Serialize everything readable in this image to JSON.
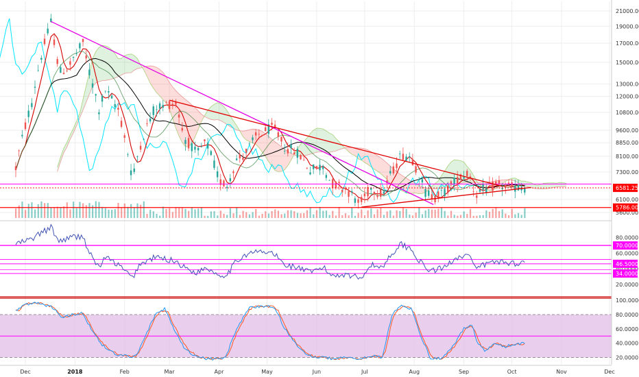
{
  "chart_data": [
    {
      "type": "candlestick",
      "pane": "price",
      "title": "",
      "y_ticks": [
        "21000.00",
        "19000.00",
        "17000.00",
        "15000.00",
        "13000.00",
        "12000.00",
        "10800.00",
        "9600.00",
        "8850.00",
        "8100.00",
        "7300.00",
        "6100.00",
        "5600.00"
      ],
      "y_tick_values": [
        21000,
        19000,
        17000,
        15000,
        13000,
        12000,
        10800,
        9600,
        8850,
        8100,
        7300,
        6100,
        5600
      ],
      "ylim": [
        5600,
        21000
      ],
      "scale": "log",
      "last_price": {
        "label": "6581.25",
        "value": 6581.25,
        "color": "#ff0000"
      },
      "support_level": {
        "label": "5786.00",
        "value": 5786,
        "color": "#ff0000"
      },
      "magenta_level": {
        "value": 6750,
        "color": "#ff00ff"
      },
      "series": [
        {
          "kind": "candles",
          "up_color": "#26a69a",
          "down_color": "#ef5350"
        },
        {
          "kind": "line",
          "color": "#00e5ff"
        },
        {
          "kind": "line",
          "color": "#000000"
        },
        {
          "kind": "cloud",
          "up_color": "#4caf50",
          "down_color": "#f44336"
        },
        {
          "kind": "volume",
          "up_color": "#26a69a",
          "down_color": "#ef5350"
        }
      ],
      "trendlines": [
        {
          "from": [
            "2017-12-17",
            19600
          ],
          "to": [
            "2018-08-13",
            5900
          ],
          "color": "#e600e6"
        },
        {
          "from": [
            "2018-03-01",
            11700
          ],
          "to": [
            "2018-09-25",
            6650
          ],
          "color": "#e00000"
        },
        {
          "from": [
            "2018-06-29",
            5800
          ],
          "to": [
            "2018-10-13",
            6600
          ],
          "color": "#e00000"
        }
      ],
      "price_waypoints": [
        [
          "2017-11-25",
          7500
        ],
        [
          "2017-12-05",
          11500
        ],
        [
          "2017-12-10",
          15000
        ],
        [
          "2017-12-17",
          19500
        ],
        [
          "2017-12-22",
          14000
        ],
        [
          "2017-12-28",
          14500
        ],
        [
          "2018-01-06",
          17000
        ],
        [
          "2018-01-10",
          14000
        ],
        [
          "2018-01-16",
          11000
        ],
        [
          "2018-01-20",
          12500
        ],
        [
          "2018-01-28",
          11000
        ],
        [
          "2018-02-06",
          6900
        ],
        [
          "2018-02-10",
          8500
        ],
        [
          "2018-02-20",
          11200
        ],
        [
          "2018-03-05",
          11500
        ],
        [
          "2018-03-10",
          9200
        ],
        [
          "2018-03-18",
          8200
        ],
        [
          "2018-03-24",
          8900
        ],
        [
          "2018-04-01",
          6900
        ],
        [
          "2018-04-06",
          6700
        ],
        [
          "2018-04-12",
          7900
        ],
        [
          "2018-04-17",
          8200
        ],
        [
          "2018-04-25",
          9300
        ],
        [
          "2018-05-05",
          9800
        ],
        [
          "2018-05-12",
          8600
        ],
        [
          "2018-05-20",
          8300
        ],
        [
          "2018-05-28",
          7400
        ],
        [
          "2018-06-05",
          7600
        ],
        [
          "2018-06-10",
          6800
        ],
        [
          "2018-06-20",
          6500
        ],
        [
          "2018-06-28",
          5900
        ],
        [
          "2018-07-05",
          6600
        ],
        [
          "2018-07-12",
          6300
        ],
        [
          "2018-07-18",
          7300
        ],
        [
          "2018-07-24",
          8200
        ],
        [
          "2018-07-30",
          8100
        ],
        [
          "2018-08-08",
          6400
        ],
        [
          "2018-08-14",
          6200
        ],
        [
          "2018-08-20",
          6400
        ],
        [
          "2018-08-27",
          6900
        ],
        [
          "2018-09-04",
          7300
        ],
        [
          "2018-09-08",
          6300
        ],
        [
          "2018-09-13",
          6500
        ],
        [
          "2018-09-22",
          6700
        ],
        [
          "2018-10-01",
          6600
        ],
        [
          "2018-10-09",
          6580
        ]
      ]
    },
    {
      "type": "line",
      "pane": "rsi",
      "ylim": [
        5,
        100
      ],
      "y_ticks": [
        "80.0000",
        "60.0000",
        "40.0000",
        "20.0000"
      ],
      "y_tick_values": [
        80,
        60,
        40,
        20
      ],
      "levels": [
        {
          "label": "70.0000",
          "value": 70,
          "color": "#ff00ff"
        },
        {
          "label": "46.5000",
          "value": 46.5,
          "color": "#ff00ff"
        },
        {
          "label": "34.0000",
          "value": 34,
          "color": "#ff00ff"
        }
      ],
      "line_color": "#3f51b5",
      "rsi_waypoints": [
        [
          "2017-11-25",
          72
        ],
        [
          "2017-12-05",
          78
        ],
        [
          "2017-12-10",
          85
        ],
        [
          "2017-12-17",
          93
        ],
        [
          "2017-12-22",
          75
        ],
        [
          "2017-12-28",
          80
        ],
        [
          "2018-01-06",
          82
        ],
        [
          "2018-01-10",
          60
        ],
        [
          "2018-01-16",
          42
        ],
        [
          "2018-01-20",
          55
        ],
        [
          "2018-01-28",
          45
        ],
        [
          "2018-02-06",
          28
        ],
        [
          "2018-02-10",
          45
        ],
        [
          "2018-02-20",
          55
        ],
        [
          "2018-03-05",
          50
        ],
        [
          "2018-03-10",
          42
        ],
        [
          "2018-03-18",
          35
        ],
        [
          "2018-03-24",
          42
        ],
        [
          "2018-04-01",
          32
        ],
        [
          "2018-04-06",
          33
        ],
        [
          "2018-04-12",
          50
        ],
        [
          "2018-04-17",
          58
        ],
        [
          "2018-04-25",
          62
        ],
        [
          "2018-05-05",
          60
        ],
        [
          "2018-05-12",
          45
        ],
        [
          "2018-05-20",
          42
        ],
        [
          "2018-05-28",
          35
        ],
        [
          "2018-06-05",
          42
        ],
        [
          "2018-06-10",
          32
        ],
        [
          "2018-06-20",
          33
        ],
        [
          "2018-06-28",
          28
        ],
        [
          "2018-07-05",
          45
        ],
        [
          "2018-07-12",
          42
        ],
        [
          "2018-07-18",
          60
        ],
        [
          "2018-07-24",
          72
        ],
        [
          "2018-07-30",
          65
        ],
        [
          "2018-08-08",
          40
        ],
        [
          "2018-08-14",
          38
        ],
        [
          "2018-08-20",
          42
        ],
        [
          "2018-08-27",
          55
        ],
        [
          "2018-09-04",
          58
        ],
        [
          "2018-09-08",
          40
        ],
        [
          "2018-09-13",
          45
        ],
        [
          "2018-09-22",
          50
        ],
        [
          "2018-10-01",
          47
        ],
        [
          "2018-10-09",
          48
        ]
      ]
    },
    {
      "type": "line",
      "pane": "stochastic",
      "ylim": [
        10,
        102
      ],
      "y_ticks": [
        "100.0000",
        "80.0000",
        "60.0000",
        "40.0000",
        "20.0000"
      ],
      "y_tick_values": [
        100,
        80,
        60,
        40,
        20
      ],
      "band": [
        20,
        80
      ],
      "mid_line": {
        "value": 50,
        "color": "#ff00ff"
      },
      "series": [
        {
          "color": "#2196f3"
        },
        {
          "color": "#ff5722"
        }
      ],
      "stoch_waypoints": [
        [
          "2017-11-25",
          85
        ],
        [
          "2017-12-01",
          95
        ],
        [
          "2017-12-10",
          96
        ],
        [
          "2017-12-18",
          90
        ],
        [
          "2017-12-24",
          75
        ],
        [
          "2017-12-30",
          80
        ],
        [
          "2018-01-06",
          82
        ],
        [
          "2018-01-12",
          55
        ],
        [
          "2018-01-18",
          38
        ],
        [
          "2018-01-26",
          25
        ],
        [
          "2018-02-02",
          22
        ],
        [
          "2018-02-08",
          22
        ],
        [
          "2018-02-14",
          50
        ],
        [
          "2018-02-20",
          80
        ],
        [
          "2018-02-26",
          88
        ],
        [
          "2018-03-04",
          60
        ],
        [
          "2018-03-10",
          35
        ],
        [
          "2018-03-18",
          20
        ],
        [
          "2018-03-28",
          18
        ],
        [
          "2018-04-05",
          20
        ],
        [
          "2018-04-12",
          60
        ],
        [
          "2018-04-20",
          90
        ],
        [
          "2018-04-28",
          92
        ],
        [
          "2018-05-06",
          90
        ],
        [
          "2018-05-12",
          60
        ],
        [
          "2018-05-20",
          35
        ],
        [
          "2018-05-28",
          22
        ],
        [
          "2018-06-05",
          20
        ],
        [
          "2018-06-12",
          18
        ],
        [
          "2018-06-20",
          20
        ],
        [
          "2018-06-28",
          18
        ],
        [
          "2018-07-05",
          22
        ],
        [
          "2018-07-12",
          20
        ],
        [
          "2018-07-18",
          80
        ],
        [
          "2018-07-24",
          92
        ],
        [
          "2018-07-30",
          88
        ],
        [
          "2018-08-05",
          50
        ],
        [
          "2018-08-11",
          20
        ],
        [
          "2018-08-18",
          18
        ],
        [
          "2018-08-25",
          35
        ],
        [
          "2018-09-01",
          60
        ],
        [
          "2018-09-06",
          65
        ],
        [
          "2018-09-10",
          38
        ],
        [
          "2018-09-14",
          30
        ],
        [
          "2018-09-20",
          40
        ],
        [
          "2018-09-26",
          35
        ],
        [
          "2018-10-02",
          38
        ],
        [
          "2018-10-09",
          40
        ]
      ]
    }
  ],
  "x_axis": {
    "ticks": [
      {
        "label": "Dec",
        "date": "2017-12-01",
        "bold": false
      },
      {
        "label": "2018",
        "date": "2018-01-01",
        "bold": true
      },
      {
        "label": "Feb",
        "date": "2018-02-01",
        "bold": false
      },
      {
        "label": "Mar",
        "date": "2018-03-01",
        "bold": false
      },
      {
        "label": "Apr",
        "date": "2018-04-01",
        "bold": false
      },
      {
        "label": "May",
        "date": "2018-05-01",
        "bold": false
      },
      {
        "label": "Jun",
        "date": "2018-06-01",
        "bold": false
      },
      {
        "label": "Jul",
        "date": "2018-07-01",
        "bold": false
      },
      {
        "label": "Aug",
        "date": "2018-08-01",
        "bold": false
      },
      {
        "label": "Sep",
        "date": "2018-09-01",
        "bold": false
      },
      {
        "label": "Oct",
        "date": "2018-10-01",
        "bold": false
      },
      {
        "label": "Nov",
        "date": "2018-11-01",
        "bold": false
      },
      {
        "label": "Dec",
        "date": "2018-12-01",
        "bold": false
      }
    ],
    "data_range": [
      "2017-11-25",
      "2018-10-09"
    ]
  },
  "colors": {
    "grid": "#eeeeee",
    "axis_border": "#cccccc",
    "pane_separator": "#cc0000",
    "stoch_band_fill": "#e1bee7"
  }
}
